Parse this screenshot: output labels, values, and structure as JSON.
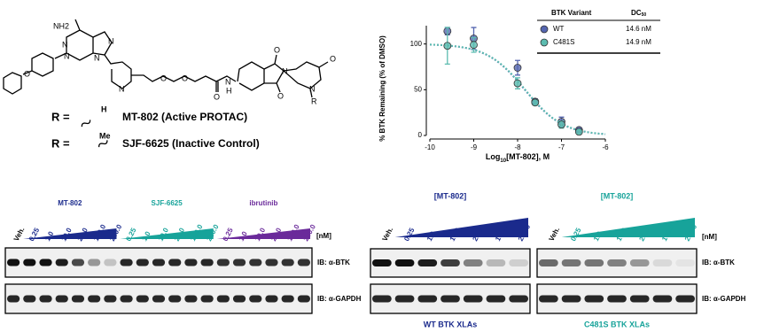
{
  "structure": {
    "atom_labels": [
      "NH2",
      "N",
      "N",
      "N",
      "N",
      "N",
      "O",
      "O",
      "O",
      "N",
      "H",
      "O",
      "O",
      "N",
      "O",
      "O",
      "N",
      "R"
    ],
    "rows": [
      {
        "r": "R =",
        "group": "H",
        "name": "MT-802 (Active PROTAC)"
      },
      {
        "r": "R =",
        "group": "Me",
        "name": "SJF-6625 (Inactive Control)"
      }
    ]
  },
  "chart_data": {
    "type": "scatter",
    "y_label": "% BTK Remaining (% of DMSO)",
    "x_label": {
      "prefix": "Log",
      "sub": "10",
      "suffix": "[MT-802], M"
    },
    "x": [
      -9.6,
      -9,
      -8,
      -7.6,
      -7,
      -6.6
    ],
    "series": [
      {
        "name": "WT",
        "color": "#5566b0",
        "values": [
          114,
          106,
          74,
          37,
          15,
          6
        ],
        "errors": [
          4,
          12,
          8,
          3,
          5,
          2
        ],
        "dc50": {
          "value": 14.6,
          "label": "14.6 nM"
        }
      },
      {
        "name": "C481S",
        "color": "#5cbcb0",
        "values": [
          98,
          99,
          57,
          36,
          12,
          4
        ],
        "errors": [
          20,
          8,
          6,
          3,
          4,
          2
        ],
        "dc50": {
          "value": 14.9,
          "label": "14.9 nM"
        }
      }
    ],
    "legend_header": {
      "variant": "BTK Variant",
      "dc": "DC",
      "sub": "50"
    },
    "xlim": [
      -10,
      -6
    ],
    "xticks": [
      -10,
      -9,
      -8,
      -7,
      -6
    ],
    "ylim": [
      0,
      120
    ],
    "yticks": [
      0,
      50,
      100
    ]
  },
  "left_blot": {
    "veh": "Veh.",
    "unit": "[nM]",
    "groups": [
      {
        "name": "MT-802",
        "color": "#1a2a8c",
        "lanes": [
          "0.25",
          "1.0",
          "10.0",
          "25.0",
          "100.0",
          "250.0"
        ]
      },
      {
        "name": "SJF-6625",
        "color": "#17a39a",
        "lanes": [
          "0.25",
          "1.0",
          "10.0",
          "25.0",
          "100.0",
          "250.0"
        ]
      },
      {
        "name": "ibrutinib",
        "color": "#6a2a9a",
        "lanes": [
          "0.25",
          "1.0",
          "10.0",
          "25.0",
          "100.0",
          "250.0"
        ]
      }
    ],
    "blots": [
      "IB: α-BTK",
      "IB: α-GAPDH"
    ]
  },
  "right_blot": {
    "unit": "[nM]",
    "blots": [
      "IB: α-BTK",
      "IB: α-GAPDH"
    ],
    "panels": [
      {
        "header": "[MT-802]",
        "color": "#1a2a8c",
        "veh": "Veh.",
        "lanes": [
          "0.25",
          "1.0",
          "10.0",
          "25.0",
          "100.0",
          "250.0"
        ],
        "footer": "WT BTK XLAs"
      },
      {
        "header": "[MT-802]",
        "color": "#17a39a",
        "veh": "Veh.",
        "lanes": [
          "0.25",
          "1.0",
          "10.0",
          "25.0",
          "100.0",
          "250.0"
        ],
        "footer": "C481S BTK XLAs"
      }
    ]
  }
}
